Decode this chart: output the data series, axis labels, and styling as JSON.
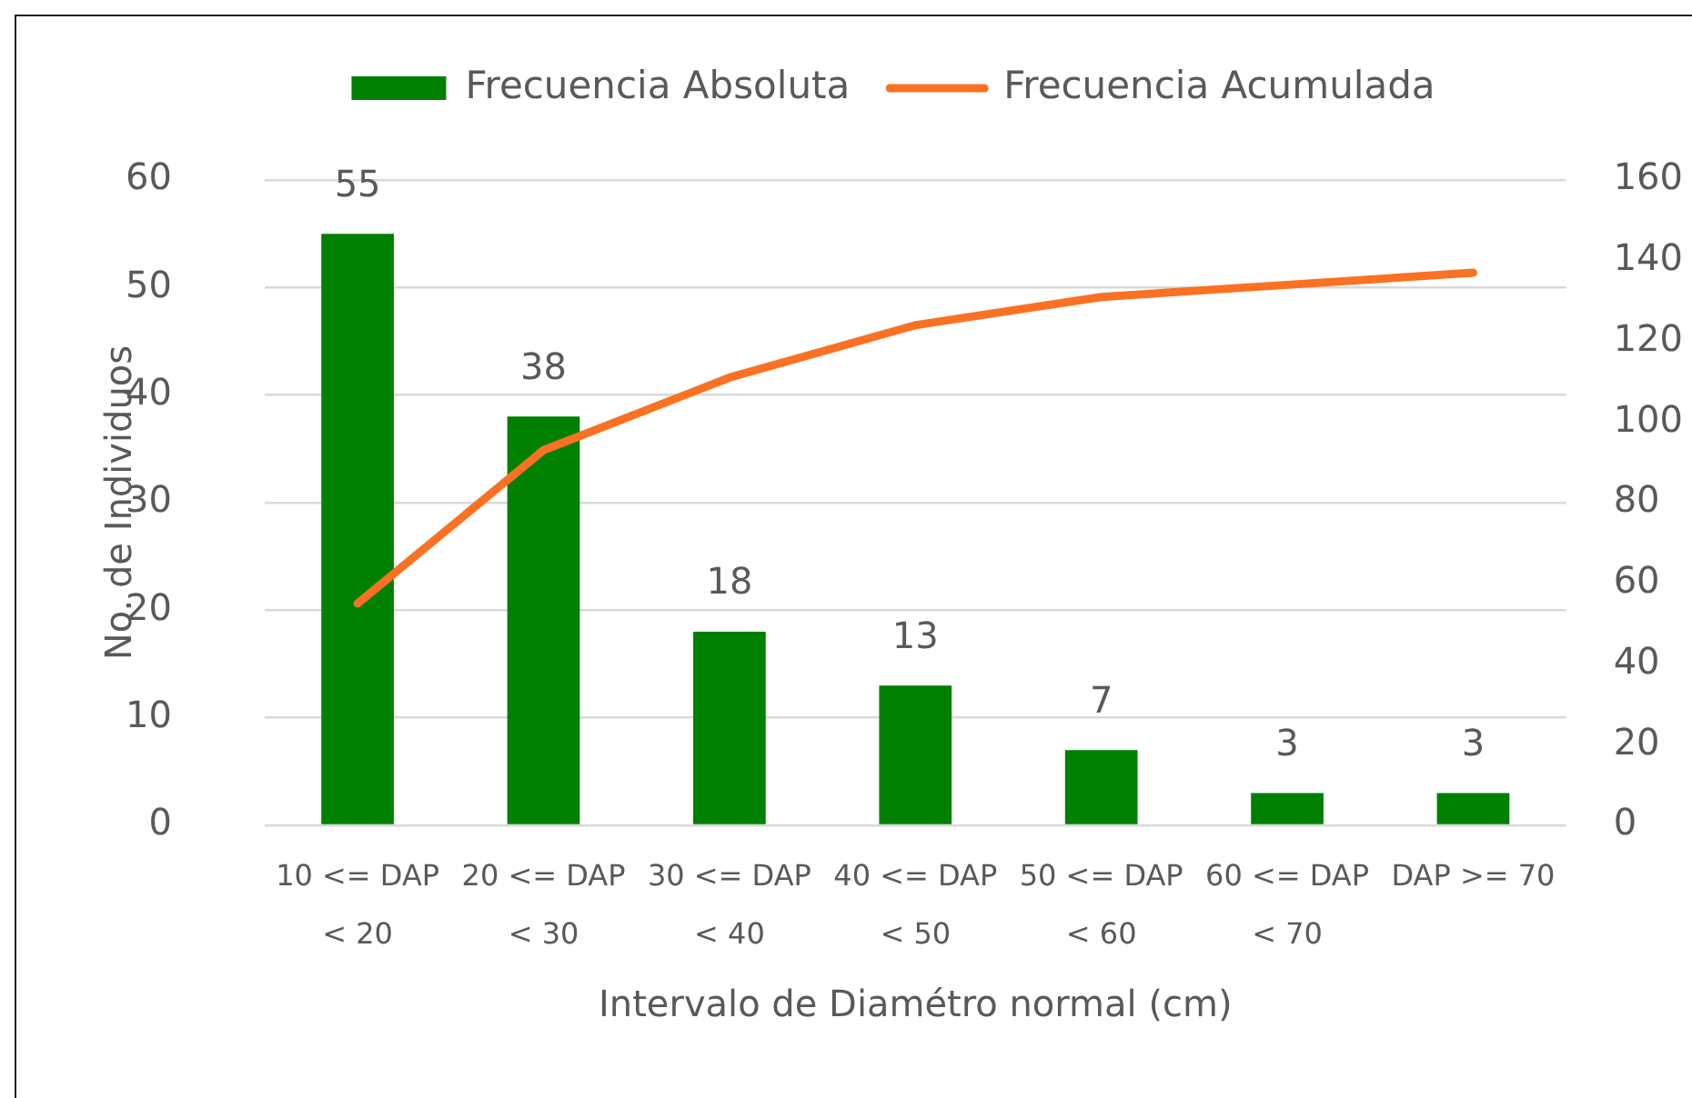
{
  "chart_data": {
    "type": "bar",
    "categories": [
      "10 <= DAP < 20",
      "20 <= DAP < 30",
      "30 <= DAP < 40",
      "40 <= DAP < 50",
      "50 <= DAP < 60",
      "60 <= DAP < 70",
      "DAP >= 70"
    ],
    "series": [
      {
        "name": "Frecuencia Absoluta",
        "color": "#008000",
        "values": [
          55,
          38,
          18,
          13,
          7,
          3,
          3
        ],
        "value_labels": [
          "55",
          "38",
          "18",
          "13",
          "7",
          "3",
          "3"
        ]
      },
      {
        "name": "Frecuencia Acumulada",
        "type": "line",
        "axis": "y2",
        "color": "#fa7123",
        "values": [
          55,
          93,
          111,
          124,
          131,
          134,
          137
        ]
      }
    ],
    "xlabel": "Intervalo de Diamétro normal (cm)",
    "ylabel": "No. de Individuos",
    "ylim": [
      0,
      60
    ],
    "yticks": [
      0,
      10,
      20,
      30,
      40,
      50,
      60
    ],
    "y2lim": [
      0,
      160
    ],
    "y2ticks": [
      0,
      20,
      40,
      60,
      80,
      100,
      120,
      140,
      160
    ],
    "grid": "y",
    "legend": "top",
    "marker": "none"
  }
}
